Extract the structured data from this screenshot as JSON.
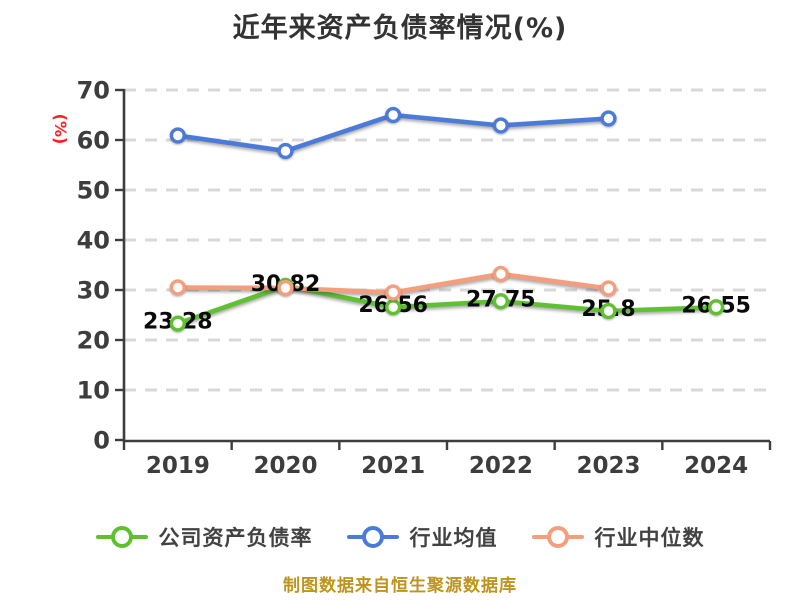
{
  "title": "近年来资产负债率情况(%)",
  "y_axis_unit": "(%)",
  "footer": "制图数据来自恒生聚源数据库",
  "colors": {
    "background": "#ffffff",
    "title_text": "#333333",
    "axis": "#3d3d3d",
    "gridline": "#d8d8d8",
    "data_label": "#0a0a0a",
    "y_unit_label": "#ff1f1f",
    "footer_text": "#be941e"
  },
  "chart_data": {
    "type": "line",
    "title": "近年来资产负债率情况(%)",
    "categories": [
      "2019",
      "2020",
      "2021",
      "2022",
      "2023",
      "2024"
    ],
    "series": [
      {
        "name": "公司资产负债率",
        "color": "#5fc131",
        "values": [
          23.28,
          30.82,
          26.56,
          27.75,
          25.8,
          26.55
        ],
        "labels": [
          "23.28",
          "30.82",
          "26.56",
          "27.75",
          "25.8",
          "26.55"
        ],
        "show_labels": true
      },
      {
        "name": "行业均值",
        "color": "#4b7bd9",
        "values": [
          60.9,
          57.8,
          65.0,
          62.9,
          64.3,
          null
        ],
        "show_labels": false
      },
      {
        "name": "行业中位数",
        "color": "#f59e7d",
        "values": [
          30.5,
          30.4,
          29.5,
          33.2,
          30.3,
          null
        ],
        "show_labels": false
      }
    ],
    "ylabel": "(%)",
    "ylim": [
      0,
      70
    ],
    "ytick_step": 10,
    "yticks": [
      "0",
      "10",
      "20",
      "30",
      "40",
      "50",
      "60",
      "70"
    ],
    "grid": "horizontal-dashed",
    "legend_position": "bottom"
  }
}
